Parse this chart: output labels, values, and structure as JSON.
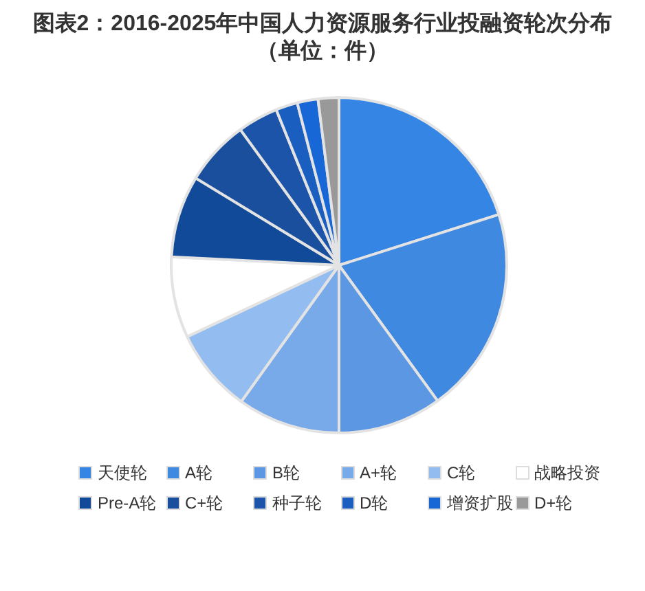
{
  "chart_data": {
    "type": "pie",
    "title": "图表2：2016-2025年中国人力资源服务行业投融资轮次分布（单位：件）",
    "categories": [
      "天使轮",
      "A轮",
      "B轮",
      "A+轮",
      "C轮",
      "战略投资",
      "Pre-A轮",
      "C+轮",
      "种子轮",
      "D轮",
      "增资扩股",
      "D+轮"
    ],
    "values": [
      20.1,
      19.9,
      10.0,
      9.9,
      8.1,
      7.8,
      7.9,
      6.3,
      3.9,
      2.1,
      2.0,
      2.0
    ],
    "colors": [
      "#3585e5",
      "#4089e0",
      "#5b97e3",
      "#78aaea",
      "#93bdf0",
      "#ffffff",
      "#124a9a",
      "#1a4f9e",
      "#1b54a8",
      "#1a5fc0",
      "#1767d6",
      "#999999"
    ],
    "legend": "bottom"
  }
}
